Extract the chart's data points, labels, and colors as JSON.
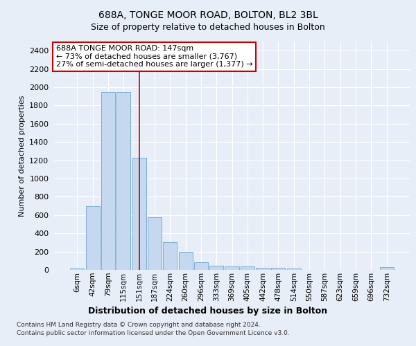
{
  "title1": "688A, TONGE MOOR ROAD, BOLTON, BL2 3BL",
  "title2": "Size of property relative to detached houses in Bolton",
  "xlabel": "Distribution of detached houses by size in Bolton",
  "ylabel": "Number of detached properties",
  "categories": [
    "6sqm",
    "42sqm",
    "79sqm",
    "115sqm",
    "151sqm",
    "187sqm",
    "224sqm",
    "260sqm",
    "296sqm",
    "333sqm",
    "369sqm",
    "405sqm",
    "442sqm",
    "478sqm",
    "514sqm",
    "550sqm",
    "587sqm",
    "623sqm",
    "659sqm",
    "696sqm",
    "732sqm"
  ],
  "values": [
    15,
    700,
    1950,
    1950,
    1225,
    575,
    305,
    200,
    80,
    45,
    38,
    35,
    25,
    20,
    15,
    0,
    0,
    0,
    0,
    0,
    30
  ],
  "bar_color": "#c5d8f0",
  "bar_edge_color": "#7aafd4",
  "vline_x": 4.0,
  "vline_color": "#cc0000",
  "annotation_text": "688A TONGE MOOR ROAD: 147sqm\n← 73% of detached houses are smaller (3,767)\n27% of semi-detached houses are larger (1,377) →",
  "annotation_box_color": "white",
  "annotation_box_edge_color": "#cc0000",
  "ylim": [
    0,
    2500
  ],
  "yticks": [
    0,
    200,
    400,
    600,
    800,
    1000,
    1200,
    1400,
    1600,
    1800,
    2000,
    2200,
    2400
  ],
  "footer1": "Contains HM Land Registry data © Crown copyright and database right 2024.",
  "footer2": "Contains public sector information licensed under the Open Government Licence v3.0.",
  "bg_color": "#e8eef8",
  "plot_bg_color": "#e8eef8"
}
